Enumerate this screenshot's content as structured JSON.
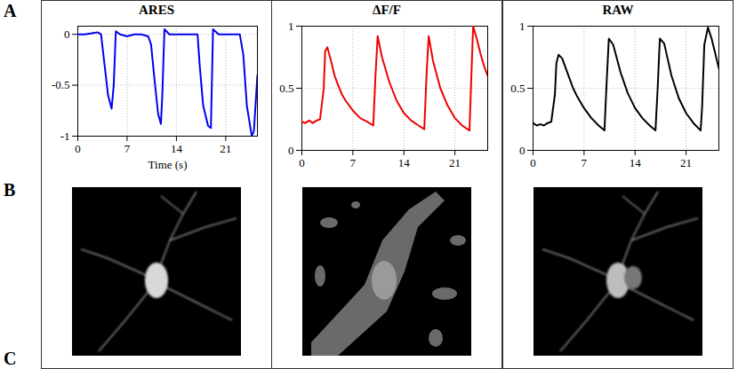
{
  "panel_letters": [
    "A",
    "B",
    "C"
  ],
  "chart_data": [
    {
      "type": "line",
      "title": "ARES",
      "xlabel": "Time (s)",
      "color": "#0000ee",
      "grid": true,
      "xlim": [
        0,
        25.5
      ],
      "xticks": [
        0,
        7,
        14,
        21
      ],
      "ylim": [
        -1,
        0.08
      ],
      "yticks": [
        -1,
        -0.5,
        0
      ],
      "x": [
        0,
        1,
        2,
        2.8,
        3.3,
        3.8,
        4.3,
        4.8,
        5.1,
        5.4,
        6,
        7,
        8,
        9,
        10,
        10.4,
        10.9,
        11.4,
        11.8,
        12.0,
        12.3,
        13,
        14,
        15,
        16,
        17,
        17.3,
        17.8,
        18.5,
        18.9,
        19.2,
        20,
        21,
        22,
        23,
        23.5,
        24,
        24.7,
        25,
        25.5
      ],
      "values": [
        0,
        0,
        0.01,
        0.02,
        0,
        -0.3,
        -0.6,
        -0.73,
        -0.5,
        0.03,
        0,
        -0.02,
        0,
        0,
        -0.02,
        -0.1,
        -0.45,
        -0.78,
        -0.88,
        -0.6,
        0.05,
        0,
        0,
        0,
        0,
        0,
        -0.3,
        -0.7,
        -0.9,
        -0.92,
        0.05,
        0,
        0,
        0,
        0,
        -0.2,
        -0.7,
        -1,
        -0.95,
        -0.4
      ]
    },
    {
      "type": "line",
      "title": "ΔF/F",
      "color": "#ee0000",
      "grid": true,
      "xlim": [
        0,
        25.5
      ],
      "xticks": [
        0,
        7,
        14,
        21
      ],
      "ylim": [
        0,
        1
      ],
      "yticks": [
        0,
        0.5,
        1
      ],
      "x": [
        0,
        0.5,
        1,
        1.5,
        2,
        2.5,
        3,
        3.2,
        3.5,
        4,
        4.5,
        5,
        5.5,
        6,
        7,
        8,
        9,
        9.8,
        10.1,
        10.4,
        11,
        12,
        13,
        14,
        15,
        16,
        16.8,
        17.1,
        17.4,
        18,
        19,
        20,
        21,
        22,
        23,
        23.2,
        23.5,
        24,
        24.5,
        25,
        25.5
      ],
      "values": [
        0.23,
        0.22,
        0.24,
        0.22,
        0.24,
        0.25,
        0.5,
        0.8,
        0.83,
        0.72,
        0.6,
        0.52,
        0.45,
        0.4,
        0.32,
        0.26,
        0.23,
        0.2,
        0.6,
        0.92,
        0.75,
        0.55,
        0.4,
        0.3,
        0.24,
        0.2,
        0.17,
        0.6,
        0.92,
        0.72,
        0.5,
        0.36,
        0.26,
        0.2,
        0.16,
        0.5,
        1.0,
        0.9,
        0.78,
        0.68,
        0.6
      ]
    },
    {
      "type": "line",
      "title": "RAW",
      "color": "#000000",
      "grid": true,
      "xlim": [
        0,
        25.5
      ],
      "xticks": [
        0,
        7,
        14,
        21
      ],
      "ylim": [
        0,
        1
      ],
      "yticks": [
        0,
        0.5,
        1
      ],
      "x": [
        0,
        0.5,
        1,
        1.5,
        2,
        2.5,
        3,
        3.2,
        3.5,
        4,
        4.5,
        5,
        5.5,
        6,
        7,
        8,
        9,
        9.8,
        10.1,
        10.4,
        11,
        12,
        13,
        14,
        15,
        16,
        16.8,
        17.1,
        17.4,
        18,
        19,
        20,
        21,
        22,
        23,
        23.2,
        23.5,
        24,
        24.5,
        25,
        25.5
      ],
      "values": [
        0.22,
        0.2,
        0.21,
        0.2,
        0.22,
        0.23,
        0.45,
        0.7,
        0.77,
        0.74,
        0.66,
        0.58,
        0.5,
        0.44,
        0.34,
        0.26,
        0.2,
        0.16,
        0.55,
        0.9,
        0.85,
        0.63,
        0.46,
        0.34,
        0.26,
        0.2,
        0.16,
        0.5,
        0.9,
        0.86,
        0.6,
        0.42,
        0.3,
        0.22,
        0.16,
        0.35,
        0.85,
        0.99,
        0.9,
        0.78,
        0.66
      ]
    }
  ]
}
